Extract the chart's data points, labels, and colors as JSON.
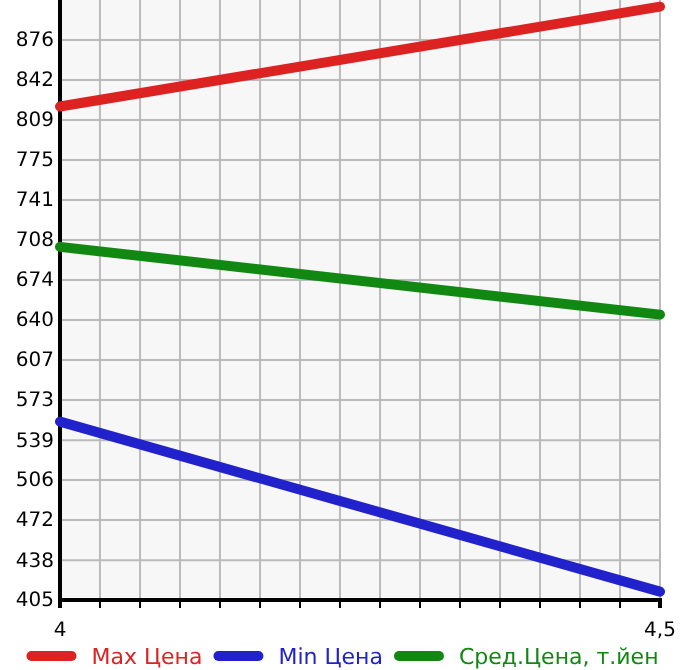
{
  "chart_data": {
    "type": "line",
    "x": [
      4,
      4.5
    ],
    "series": [
      {
        "name": "Max Цена",
        "color": "#dd2222",
        "values": [
          820,
          904
        ]
      },
      {
        "name": "Min Цена",
        "color": "#2222cc",
        "values": [
          555,
          412
        ]
      },
      {
        "name": "Сред.Цена, т.йен",
        "color": "#118811",
        "values": [
          702,
          645
        ]
      }
    ],
    "xlim": [
      4,
      4.5
    ],
    "xticks": [
      4,
      {
        "value": 4.0333,
        "label": null
      },
      {
        "value": 4.0667,
        "label": null
      },
      {
        "value": 4.1,
        "label": null
      },
      {
        "value": 4.1333,
        "label": null
      },
      {
        "value": 4.1667,
        "label": null
      },
      {
        "value": 4.2,
        "label": null
      },
      {
        "value": 4.2333,
        "label": null
      },
      {
        "value": 4.2667,
        "label": null
      },
      {
        "value": 4.3,
        "label": null
      },
      {
        "value": 4.3333,
        "label": null
      },
      {
        "value": 4.3667,
        "label": null
      },
      {
        "value": 4.4,
        "label": null
      },
      {
        "value": 4.4333,
        "label": null
      },
      {
        "value": 4.4667,
        "label": null
      },
      {
        "value": 4.5,
        "label": "4,5"
      }
    ],
    "ylim": [
      405,
      909.6
    ],
    "yticks": [
      405,
      {
        "value": 438.4,
        "label": "438"
      },
      {
        "value": 472.3,
        "label": "472"
      },
      {
        "value": 505.9,
        "label": "506"
      },
      {
        "value": 539.4,
        "label": "539"
      },
      {
        "value": 573.2,
        "label": "573"
      },
      {
        "value": 606.9,
        "label": "607"
      },
      {
        "value": 640.5,
        "label": "640"
      },
      {
        "value": 674.1,
        "label": "674"
      },
      {
        "value": 707.8,
        "label": "708"
      },
      {
        "value": 741.4,
        "label": "741"
      },
      {
        "value": 775.1,
        "label": "775"
      },
      {
        "value": 808.7,
        "label": "809"
      },
      {
        "value": 842.4,
        "label": "842"
      },
      {
        "value": 876,
        "label": "876"
      }
    ],
    "grid": true,
    "legend": "bottom",
    "marker": "none",
    "line_style": "solid"
  }
}
